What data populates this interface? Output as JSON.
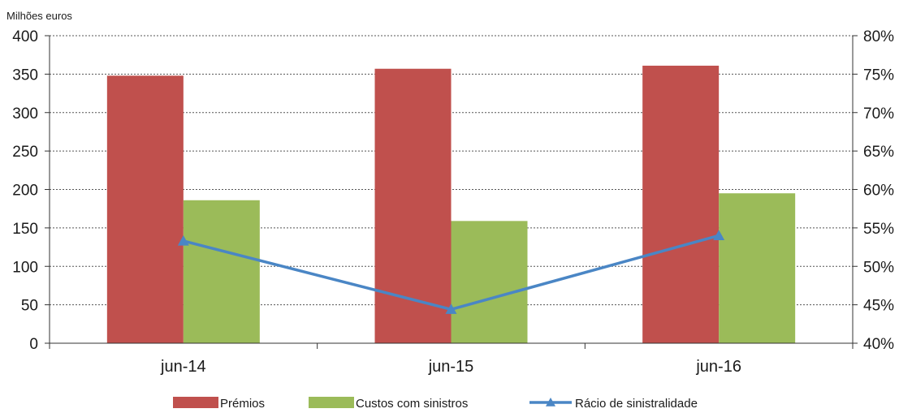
{
  "chart_data": {
    "type": "bar",
    "unit_label": "Milhões euros",
    "categories": [
      "jun-14",
      "jun-15",
      "jun-16"
    ],
    "series": [
      {
        "name": "Prémios",
        "type": "bar",
        "axis": "left",
        "color": "#c0504d",
        "values": [
          348,
          357,
          361
        ]
      },
      {
        "name": "Custos com sinistros",
        "type": "bar",
        "axis": "left",
        "color": "#9bbb59",
        "values": [
          186,
          159,
          195
        ]
      },
      {
        "name": "Rácio de sinistralidade",
        "type": "line",
        "axis": "right",
        "marker": "triangle",
        "color": "#4a86c5",
        "values": [
          53.3,
          44.4,
          54.0
        ]
      }
    ],
    "y_left": {
      "min": 0,
      "max": 400,
      "ticks": [
        "0",
        "50",
        "100",
        "150",
        "200",
        "250",
        "300",
        "350",
        "400"
      ]
    },
    "y_right": {
      "min": 40,
      "max": 80,
      "ticks": [
        "40%",
        "45%",
        "50%",
        "55%",
        "60%",
        "65%",
        "70%",
        "75%",
        "80%"
      ]
    },
    "grid": true,
    "legend_position": "bottom"
  }
}
